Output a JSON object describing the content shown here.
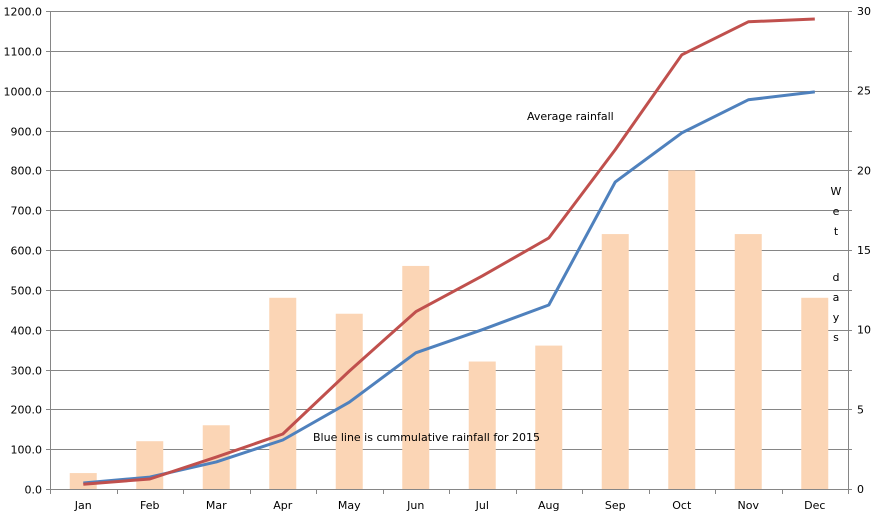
{
  "chart_data": {
    "type": "bar+line",
    "categories": [
      "Jan",
      "Feb",
      "Mar",
      "Apr",
      "May",
      "Jun",
      "Jul",
      "Aug",
      "Sep",
      "Oct",
      "Nov",
      "Dec"
    ],
    "bars": {
      "axis": "right",
      "values": [
        1,
        3,
        4,
        12,
        11,
        14,
        8,
        9,
        16,
        20,
        16,
        12
      ],
      "color": "#fbd5b5"
    },
    "series": [
      {
        "axis": "left",
        "color": "#4f81bd",
        "values": [
          15,
          30,
          68,
          123,
          218,
          342,
          400,
          462,
          771,
          894,
          977,
          997
        ]
      },
      {
        "axis": "left",
        "color": "#c0504d",
        "values": [
          12,
          25,
          80,
          138,
          296,
          445,
          535,
          630,
          852,
          1090,
          1173,
          1180
        ]
      }
    ],
    "ylim": [
      0,
      1200
    ],
    "yticks": [
      "0.0",
      "100.0",
      "200.0",
      "300.0",
      "400.0",
      "500.0",
      "600.0",
      "700.0",
      "800.0",
      "900.0",
      "1000.0",
      "1100.0",
      "1200.0"
    ],
    "y2lim": [
      0,
      30
    ],
    "y2ticks": [
      "0",
      "5",
      "10",
      "15",
      "20",
      "25",
      "30"
    ],
    "y2label": "Wet days",
    "grid": true,
    "annotations": [
      "Average rainfall",
      "Blue line is cummulative rainfall for 2015"
    ]
  }
}
